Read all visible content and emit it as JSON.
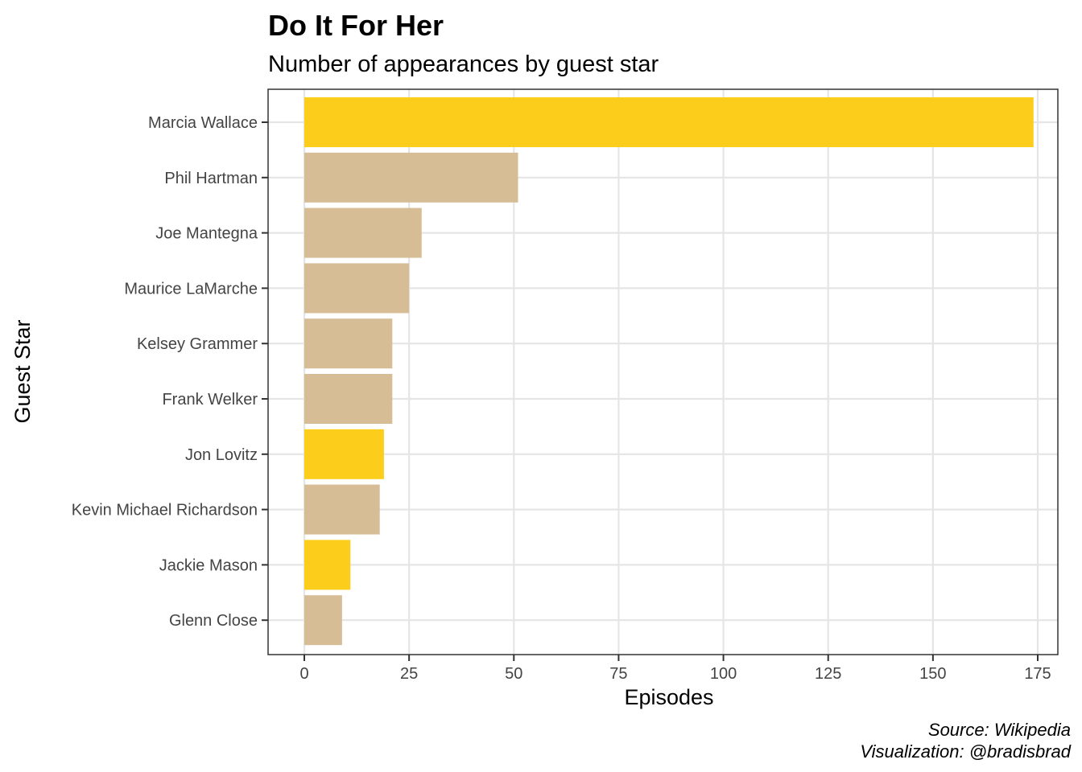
{
  "colors": {
    "highlight": "#fdcd1b",
    "default": "#d7bd96",
    "grid": "#e5e5e5",
    "panel_border": "#333333"
  },
  "chart_data": {
    "type": "bar",
    "orientation": "horizontal",
    "title": "Do It For Her",
    "subtitle": "Number of appearances by guest star",
    "xlabel": "Episodes",
    "ylabel": "Guest Star",
    "xlim": [
      0,
      175
    ],
    "x_ticks": [
      0,
      25,
      50,
      75,
      100,
      125,
      150,
      175
    ],
    "x_tick_labels": [
      "0",
      "25",
      "50",
      "75",
      "100",
      "125",
      "150",
      "175"
    ],
    "grid": true,
    "legend": "none",
    "caption": [
      "Source: Wikipedia",
      "Visualization: @bradisbrad"
    ],
    "categories": [
      "Marcia Wallace",
      "Phil Hartman",
      "Joe Mantegna",
      "Maurice LaMarche",
      "Kelsey Grammer",
      "Frank Welker",
      "Jon Lovitz",
      "Kevin Michael Richardson",
      "Jackie Mason",
      "Glenn Close"
    ],
    "values": [
      174,
      51,
      28,
      25,
      21,
      21,
      19,
      18,
      11,
      9
    ],
    "highlighted": [
      true,
      false,
      false,
      false,
      false,
      false,
      true,
      false,
      true,
      false
    ]
  }
}
